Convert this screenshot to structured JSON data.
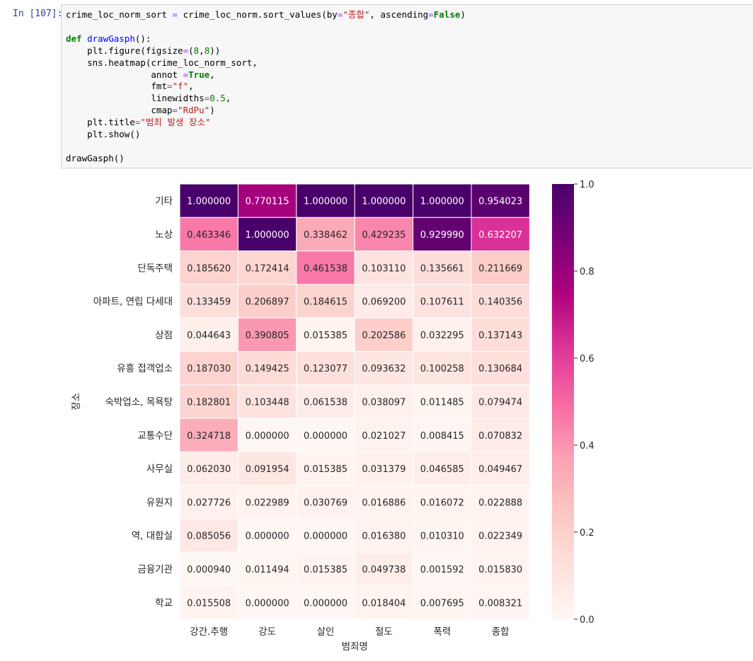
{
  "cell": {
    "prompt": "In [107]:",
    "code_lines": [
      [
        [
          "crime_loc_norm_sort ",
          ""
        ],
        [
          "=",
          "op"
        ],
        [
          " crime_loc_norm.sort_values(by",
          ""
        ],
        [
          "=",
          "op"
        ],
        [
          "\"종합\"",
          "str"
        ],
        [
          ", ascending",
          ""
        ],
        [
          "=",
          "op"
        ],
        [
          "False",
          "kw"
        ],
        [
          ")",
          ""
        ]
      ],
      [
        [
          "",
          ""
        ]
      ],
      [
        [
          "def",
          "kw"
        ],
        [
          " ",
          ""
        ],
        [
          "drawGasph",
          "fn"
        ],
        [
          "():",
          ""
        ]
      ],
      [
        [
          "    plt.figure(figsize",
          ""
        ],
        [
          "=",
          "op"
        ],
        [
          "(",
          ""
        ],
        [
          "8",
          "num"
        ],
        [
          ",",
          ""
        ],
        [
          "8",
          "num"
        ],
        [
          "))",
          ""
        ]
      ],
      [
        [
          "    sns.heatmap(crime_loc_norm_sort,",
          ""
        ]
      ],
      [
        [
          "                annot ",
          ""
        ],
        [
          "=",
          "op"
        ],
        [
          "True",
          "kw"
        ],
        [
          ",",
          ""
        ]
      ],
      [
        [
          "                fmt",
          ""
        ],
        [
          "=",
          "op"
        ],
        [
          "\"f\"",
          "str"
        ],
        [
          ",",
          ""
        ]
      ],
      [
        [
          "                linewidths",
          ""
        ],
        [
          "=",
          "op"
        ],
        [
          "0.5",
          "num"
        ],
        [
          ",",
          ""
        ]
      ],
      [
        [
          "                cmap",
          ""
        ],
        [
          "=",
          "op"
        ],
        [
          "\"RdPu\"",
          "str"
        ],
        [
          ")",
          ""
        ]
      ],
      [
        [
          "    plt.title",
          ""
        ],
        [
          "=",
          "op"
        ],
        [
          "\"범죄 발생 장소\"",
          "str"
        ]
      ],
      [
        [
          "    plt.show()",
          ""
        ]
      ],
      [
        [
          "",
          ""
        ]
      ],
      [
        [
          "drawGasph()",
          ""
        ]
      ]
    ]
  },
  "chart_data": {
    "type": "heatmap",
    "xlabel": "범죄명",
    "ylabel": "장소",
    "columns": [
      "강간.추행",
      "강도",
      "살인",
      "절도",
      "폭력",
      "종합"
    ],
    "rows": [
      "기타",
      "노상",
      "단독주택",
      "아파트, 연립 다세대",
      "상점",
      "유흥 접객업소",
      "숙박업소, 목욕탕",
      "교통수단",
      "사무실",
      "유원지",
      "역, 대합실",
      "금융기관",
      "학교"
    ],
    "values": [
      [
        1.0,
        0.770115,
        1.0,
        1.0,
        1.0,
        0.954023
      ],
      [
        0.463346,
        1.0,
        0.338462,
        0.429235,
        0.92999,
        0.632207
      ],
      [
        0.18562,
        0.172414,
        0.461538,
        0.10311,
        0.135661,
        0.211669
      ],
      [
        0.133459,
        0.206897,
        0.184615,
        0.0692,
        0.107611,
        0.140356
      ],
      [
        0.044643,
        0.390805,
        0.015385,
        0.202586,
        0.032295,
        0.137143
      ],
      [
        0.18703,
        0.149425,
        0.123077,
        0.093632,
        0.100258,
        0.130684
      ],
      [
        0.182801,
        0.103448,
        0.061538,
        0.038097,
        0.011485,
        0.079474
      ],
      [
        0.324718,
        0.0,
        0.0,
        0.021027,
        0.008415,
        0.070832
      ],
      [
        0.06203,
        0.091954,
        0.015385,
        0.031379,
        0.046585,
        0.049467
      ],
      [
        0.027726,
        0.022989,
        0.030769,
        0.016886,
        0.016072,
        0.022888
      ],
      [
        0.085056,
        0.0,
        0.0,
        0.01638,
        0.01031,
        0.022349
      ],
      [
        0.00094,
        0.011494,
        0.015385,
        0.049738,
        0.001592,
        0.01583
      ],
      [
        0.015508,
        0.0,
        0.0,
        0.018404,
        0.007695,
        0.008321
      ]
    ],
    "vmin": 0.0,
    "vmax": 1.0,
    "colormap": "RdPu",
    "colorbar_ticks": [
      0.0,
      0.2,
      0.4,
      0.6,
      0.8,
      1.0
    ],
    "colorbar_tick_labels": [
      "0.0",
      "0.2",
      "0.4",
      "0.6",
      "0.8",
      "1.0"
    ],
    "cell_number_format": "%.6f"
  }
}
